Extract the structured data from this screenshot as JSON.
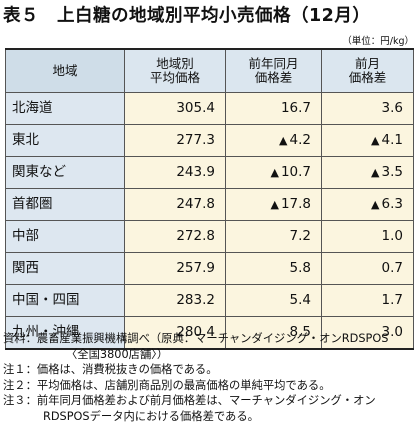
{
  "title": "表５　上白糖の地域別平均小売価格（12月）",
  "unit": "（単位：円/kg）",
  "table": {
    "headers": [
      "地域",
      "地域別\n平均価格",
      "前年同月\n価格差",
      "前月\n価格差"
    ],
    "rows": [
      {
        "region": "北海道",
        "avg": "305.4",
        "yoy": "16.7",
        "yoy_neg": false,
        "mom": "3.6",
        "mom_neg": false
      },
      {
        "region": "東北",
        "avg": "277.3",
        "yoy": "4.2",
        "yoy_neg": true,
        "mom": "4.1",
        "mom_neg": true
      },
      {
        "region": "関東など",
        "avg": "243.9",
        "yoy": "10.7",
        "yoy_neg": true,
        "mom": "3.5",
        "mom_neg": true
      },
      {
        "region": "首都圏",
        "avg": "247.8",
        "yoy": "17.8",
        "yoy_neg": true,
        "mom": "6.3",
        "mom_neg": true
      },
      {
        "region": "中部",
        "avg": "272.8",
        "yoy": "7.2",
        "yoy_neg": false,
        "mom": "1.0",
        "mom_neg": false
      },
      {
        "region": "関西",
        "avg": "257.9",
        "yoy": "5.8",
        "yoy_neg": false,
        "mom": "0.7",
        "mom_neg": false
      },
      {
        "region": "中国・四国",
        "avg": "283.2",
        "yoy": "5.4",
        "yoy_neg": false,
        "mom": "1.7",
        "mom_neg": false
      },
      {
        "region": "九州・沖縄",
        "avg": "280.4",
        "yoy": "8.5",
        "yoy_neg": false,
        "mom": "3.0",
        "mom_neg": false
      }
    ]
  },
  "notes": {
    "source_line1": "資料：農畜産業振興機構調べ（原典：マーチャンダイジング・オンRDSPOS",
    "source_line2": "〈全国3800店舗〉）",
    "note1": "注１：価格は、消費税抜きの価格である。",
    "note2": "注２：平均価格は、店舗別商品別の最高価格の単純平均である。",
    "note3_line1": "注３：前年同月価格差および前月価格差は、マーチャンダイジング・オン",
    "note3_line2": "RDSPOSデータ内における価格差である。"
  },
  "colors": {
    "header_bg": "#dbe6ef",
    "region_bg": "#dde7f0",
    "value_bg": "#fbf5df"
  },
  "icons": {
    "negative_marker": "▲"
  }
}
